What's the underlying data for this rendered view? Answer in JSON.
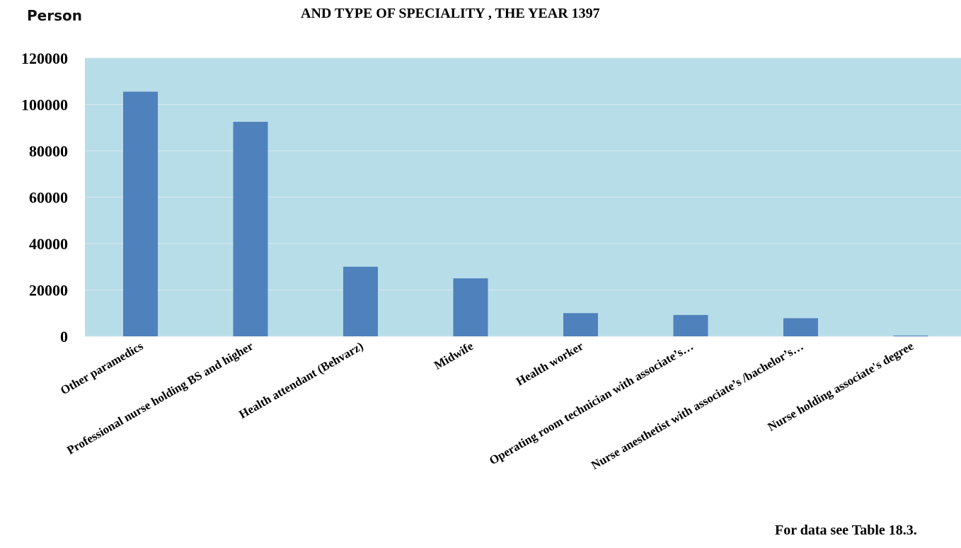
{
  "header": {
    "unit": "Person",
    "title": "AND TYPE OF SPECIALITY , THE YEAR 1397"
  },
  "footer": {
    "source": "For data see Table 18.3."
  },
  "colors": {
    "plot_background": "#b7dde8",
    "bar": "#4f81bd",
    "grid": "#d9e8ee"
  },
  "chart_data": {
    "type": "bar",
    "title": "AND TYPE OF SPECIALITY , THE YEAR 1397",
    "xlabel": "",
    "ylabel": "Person",
    "categories": [
      "Other paramedics",
      "Professional nurse holding BS and higher",
      "Health attendant (Behvarz)",
      "Midwife",
      "Health worker",
      "Operating room technician  with associate’s…",
      "Nurse anesthetist  with associate’s /bachelor’s…",
      "Nurse holding associate's degree"
    ],
    "values": [
      105500,
      92500,
      30000,
      25000,
      10000,
      9200,
      7800,
      300
    ],
    "ylim": [
      0,
      120000
    ],
    "yticks": [
      "0",
      "20000",
      "40000",
      "60000",
      "80000",
      "100000",
      "120000"
    ],
    "grid": true,
    "legend": "none"
  }
}
